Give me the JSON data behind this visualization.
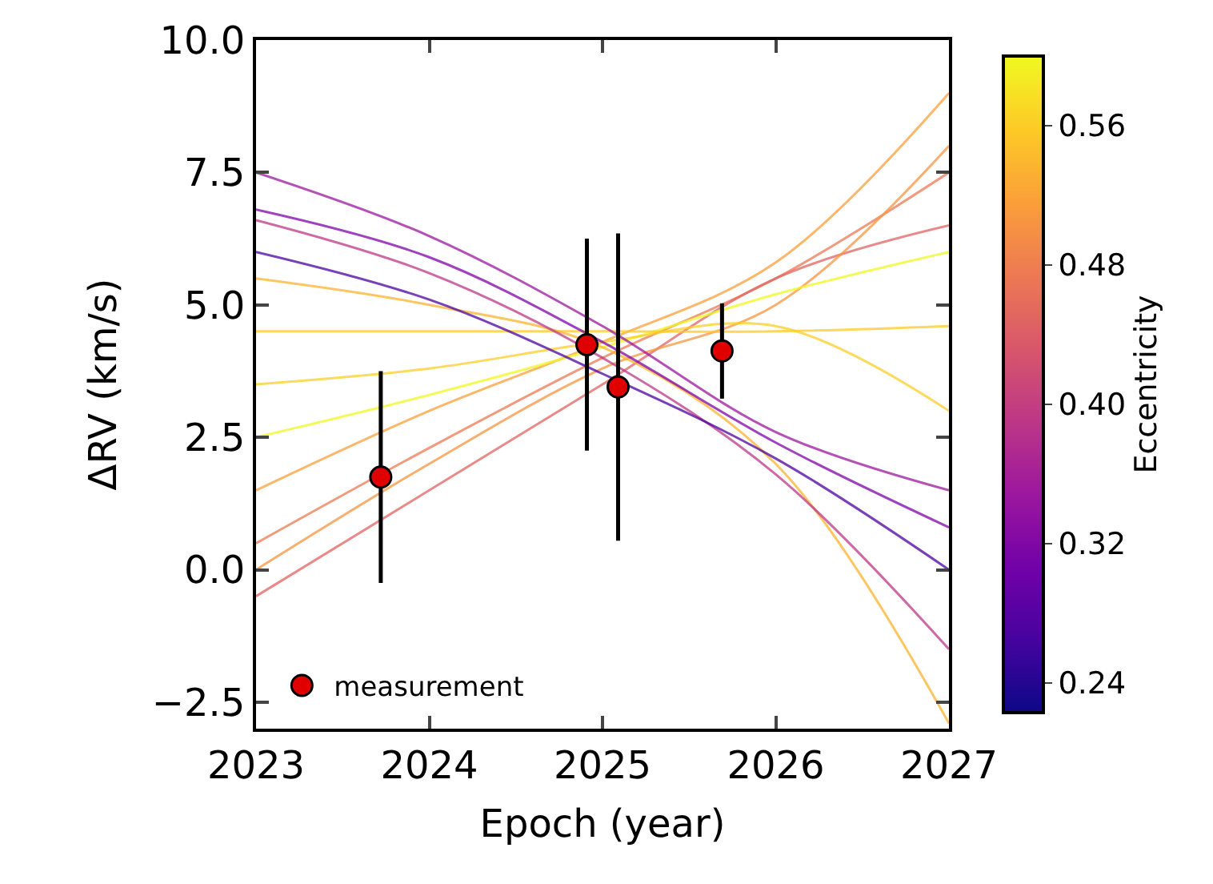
{
  "chart_data": {
    "type": "line",
    "xlabel": "Epoch (year)",
    "ylabel": "ΔRV (km/s)",
    "clabel": "Eccentricity",
    "xlim": [
      2023,
      2027
    ],
    "xticks": [
      2023,
      2024,
      2025,
      2026,
      2027
    ],
    "ylim": [
      -3.0,
      10.0
    ],
    "yticks": [
      {
        "value": -2.5,
        "label": "−2.5"
      },
      {
        "value": 0,
        "label": "0.0"
      },
      2.5,
      {
        "value": 5,
        "label": "5.0"
      },
      7.5,
      {
        "value": 10,
        "label": "10.0"
      }
    ],
    "clim": [
      0.223,
      0.6
    ],
    "cticks": [
      0.24,
      0.32,
      {
        "value": 0.4,
        "label": "0.40"
      },
      0.48,
      0.56
    ],
    "legend": "bottom left",
    "marker": "none",
    "line_style": "solid",
    "x": [
      2023,
      2024,
      2025,
      2026,
      2027
    ],
    "series": [
      {
        "color": "#ed7953",
        "values": [
          0.5,
          2.3,
          4.0,
          5.5,
          7.5
        ]
      },
      {
        "color": "#e16462",
        "values": [
          -0.5,
          1.5,
          3.5,
          5.5,
          6.5
        ]
      },
      {
        "color": "#f89540",
        "values": [
          0.0,
          2.0,
          3.8,
          5.0,
          8.0
        ]
      },
      {
        "color": "#fb9f3a",
        "values": [
          1.5,
          3.0,
          4.3,
          5.8,
          9.0
        ]
      },
      {
        "color": "#f0f921",
        "values": [
          2.5,
          3.3,
          4.2,
          5.2,
          6.0
        ]
      },
      {
        "color": "#fdca26",
        "values": [
          4.5,
          4.5,
          4.5,
          4.5,
          4.6
        ]
      },
      {
        "color": "#fcce25",
        "values": [
          3.5,
          3.8,
          4.3,
          4.6,
          3.0
        ]
      },
      {
        "color": "#fdb42f",
        "values": [
          5.5,
          5.0,
          4.2,
          2.0,
          -2.9
        ]
      },
      {
        "color": "#bd3786",
        "values": [
          6.6,
          5.6,
          4.0,
          1.8,
          -1.5
        ]
      },
      {
        "color": "#9c179e",
        "values": [
          7.5,
          6.3,
          4.6,
          2.6,
          1.5
        ]
      },
      {
        "color": "#7e03a8",
        "values": [
          6.8,
          5.9,
          4.3,
          2.4,
          0.8
        ]
      },
      {
        "color": "#4c02a1",
        "values": [
          6.0,
          5.1,
          3.7,
          2.1,
          0.0
        ]
      },
      {
        "type": "scatter",
        "name": "measurement",
        "color": "#e00000",
        "marker": "circle",
        "x": [
          2023.72,
          2024.91,
          2025.09,
          2025.69
        ],
        "values": [
          1.75,
          4.25,
          3.45,
          4.13
        ],
        "errors": [
          2.0,
          2.0,
          2.9,
          0.9
        ]
      }
    ]
  }
}
